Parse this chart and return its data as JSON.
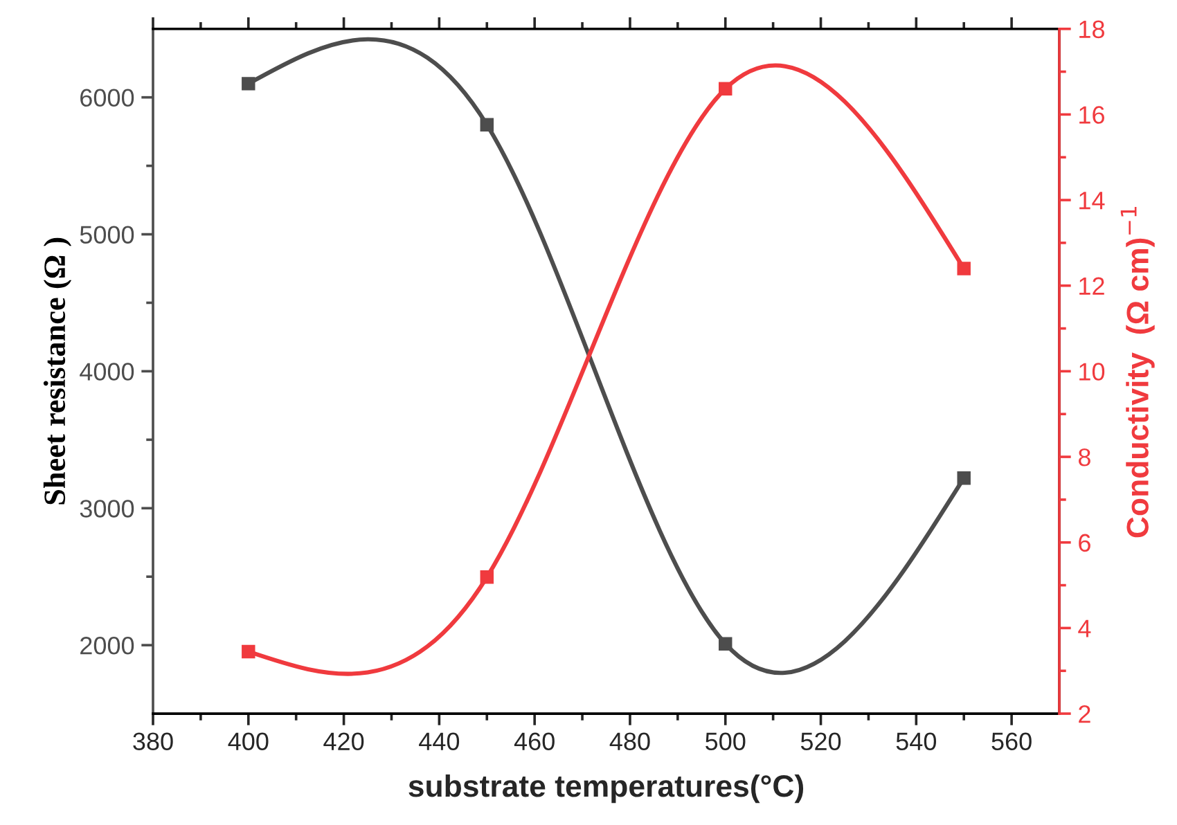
{
  "chart_data": {
    "type": "line",
    "xlabel": "substrate temperatures(°C)",
    "ylabel": "Sheet resistance (Ω )",
    "y2label": "Conductivity  (Ω cm)$^{−1}$",
    "x": [
      400,
      450,
      500,
      550
    ],
    "series": [
      {
        "color": "#4d4d4d",
        "values": [
          6100,
          5800,
          2010,
          3220
        ]
      },
      {
        "color": "#f03a3e",
        "values": [
          3.45,
          5.19,
          16.6,
          12.4
        ],
        "axis": "y2"
      }
    ],
    "xlim": [
      380,
      570
    ],
    "xticks": [
      380,
      400,
      420,
      440,
      460,
      480,
      500,
      520,
      540,
      560
    ],
    "ylim": [
      1500,
      6500
    ],
    "yticks": [
      2000,
      3000,
      4000,
      5000,
      6000
    ],
    "y2lim": [
      2,
      18
    ],
    "y2ticks": [
      2,
      4,
      6,
      8,
      10,
      12,
      14,
      16,
      18
    ],
    "marker": "square",
    "line_style": "solid",
    "grid": false,
    "legend": false
  }
}
